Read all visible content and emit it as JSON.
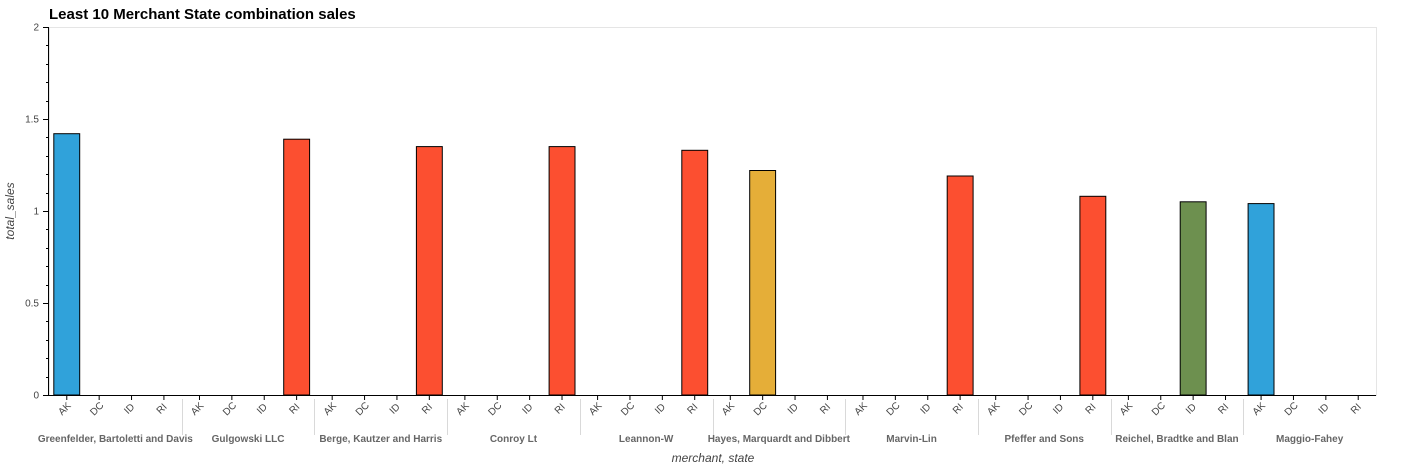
{
  "chart_data": {
    "type": "bar",
    "title": "Least 10 Merchant State combination sales",
    "xlabel": "merchant, state",
    "ylabel": "total_sales",
    "ylim": [
      0,
      2
    ],
    "yticks": [
      "0",
      "0.5",
      "1",
      "1.5",
      "2"
    ],
    "states": [
      "AK",
      "DC",
      "ID",
      "RI"
    ],
    "state_colors": {
      "AK": "#30a2da",
      "DC": "#e5ae38",
      "ID": "#6d904f",
      "RI": "#fc4f30"
    },
    "grid": false,
    "groups": [
      {
        "merchant": "Greenfelder, Bartoletti and Davis",
        "values": [
          1.42,
          0,
          0,
          0
        ]
      },
      {
        "merchant": "Gulgowski LLC",
        "values": [
          0,
          0,
          0,
          1.39
        ]
      },
      {
        "merchant": "Berge, Kautzer and Harris",
        "values": [
          0,
          0,
          0,
          1.35
        ]
      },
      {
        "merchant": "Conroy Lt",
        "values": [
          0,
          0,
          0,
          1.35
        ]
      },
      {
        "merchant": "Leannon-W",
        "values": [
          0,
          0,
          0,
          1.33
        ]
      },
      {
        "merchant": "Hayes, Marquardt and Dibbert",
        "values": [
          0,
          1.22,
          0,
          0
        ]
      },
      {
        "merchant": "Marvin-Lin",
        "values": [
          0,
          0,
          0,
          1.19
        ]
      },
      {
        "merchant": "Pfeffer and Sons",
        "values": [
          0,
          0,
          0,
          1.08
        ]
      },
      {
        "merchant": "Reichel, Bradtke and Blan",
        "values": [
          0,
          0,
          1.05,
          0
        ]
      },
      {
        "merchant": "Maggio-Fahey",
        "values": [
          1.04,
          0,
          0,
          0
        ]
      }
    ]
  }
}
